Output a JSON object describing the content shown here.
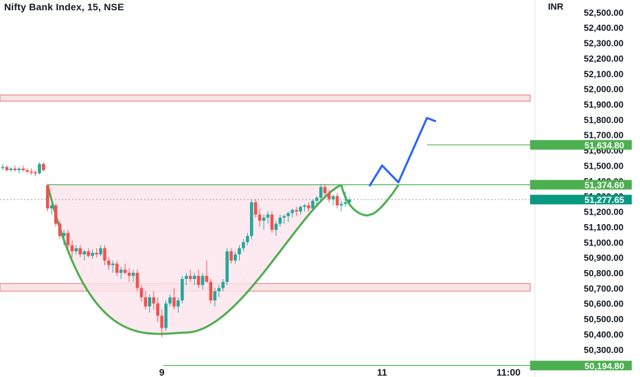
{
  "header": {
    "title": "Nifty Bank Index, 15, NSE",
    "currency": "INR"
  },
  "colors": {
    "up": "#26a69a",
    "down": "#ef5350",
    "pattern_stroke": "#4caf50",
    "pattern_fill": "#fce4ec",
    "projection": "#2962ff",
    "zone_fill": "#f8d7da",
    "zone_stroke": "#e57373",
    "level_label_bg": "#4caf50",
    "current_label_bg": "#089981"
  },
  "chart_data": {
    "type": "candlestick",
    "title": "Nifty Bank Index, 15, NSE",
    "y_axis": {
      "unit": "INR",
      "ticks": [
        "52,500.00",
        "52,400.00",
        "52,300.00",
        "52,200.00",
        "52,100.00",
        "52,000.00",
        "51,900.00",
        "51,800.00",
        "51,700.00",
        "51,600.00",
        "51,500.00",
        "51,400.00",
        "51,300.00",
        "51,200.00",
        "51,100.00",
        "51,000.00",
        "50,900.00",
        "50,800.00",
        "50,700.00",
        "50,600.00",
        "50,500.00",
        "50,400.00",
        "50,300.00",
        "50,200.00"
      ],
      "range": [
        50120,
        52580
      ],
      "side": "right"
    },
    "x_axis": {
      "ticks": [
        {
          "label": "9",
          "bar": 39
        },
        {
          "label": "11",
          "bar": 93
        },
        {
          "label": "11:00",
          "bar": 124
        }
      ]
    },
    "candles": [
      [
        51490,
        51510,
        51470,
        51490
      ],
      [
        51490,
        51500,
        51460,
        51470
      ],
      [
        51470,
        51490,
        51460,
        51480
      ],
      [
        51480,
        51500,
        51460,
        51470
      ],
      [
        51470,
        51490,
        51450,
        51480
      ],
      [
        51480,
        51500,
        51460,
        51470
      ],
      [
        51470,
        51480,
        51450,
        51460
      ],
      [
        51460,
        51480,
        51440,
        51455
      ],
      [
        51455,
        51470,
        51430,
        51450
      ],
      [
        51450,
        51520,
        51440,
        51510
      ],
      [
        51510,
        51520,
        51460,
        51470
      ],
      [
        51370,
        51380,
        51200,
        51220
      ],
      [
        51220,
        51260,
        51180,
        51240
      ],
      [
        51240,
        51250,
        51100,
        51120
      ],
      [
        51120,
        51140,
        51020,
        51040
      ],
      [
        51040,
        51080,
        50980,
        51060
      ],
      [
        51060,
        51080,
        50960,
        50980
      ],
      [
        50980,
        51010,
        50900,
        50940
      ],
      [
        50940,
        50980,
        50920,
        50960
      ],
      [
        50960,
        50980,
        50900,
        50920
      ],
      [
        50920,
        50950,
        50880,
        50940
      ],
      [
        50940,
        50960,
        50900,
        50910
      ],
      [
        50910,
        50950,
        50890,
        50930
      ],
      [
        50930,
        50960,
        50900,
        50920
      ],
      [
        50920,
        50980,
        50910,
        50960
      ],
      [
        50960,
        50980,
        50850,
        50880
      ],
      [
        50880,
        50900,
        50820,
        50850
      ],
      [
        50850,
        50880,
        50800,
        50860
      ],
      [
        50860,
        50880,
        50780,
        50800
      ],
      [
        50800,
        50840,
        50760,
        50820
      ],
      [
        50820,
        50860,
        50790,
        50800
      ],
      [
        50800,
        50830,
        50740,
        50780
      ],
      [
        50780,
        50820,
        50740,
        50800
      ],
      [
        50800,
        50820,
        50680,
        50700
      ],
      [
        50700,
        50720,
        50610,
        50640
      ],
      [
        50640,
        50680,
        50560,
        50580
      ],
      [
        50580,
        50660,
        50540,
        50640
      ],
      [
        50640,
        50680,
        50560,
        50600
      ],
      [
        50600,
        50640,
        50480,
        50520
      ],
      [
        50520,
        50560,
        50380,
        50440
      ],
      [
        50440,
        50620,
        50420,
        50600
      ],
      [
        50600,
        50660,
        50580,
        50640
      ],
      [
        50640,
        50700,
        50560,
        50580
      ],
      [
        50580,
        50640,
        50540,
        50620
      ],
      [
        50620,
        50780,
        50600,
        50760
      ],
      [
        50760,
        50800,
        50720,
        50780
      ],
      [
        50780,
        50820,
        50740,
        50760
      ],
      [
        50760,
        50800,
        50720,
        50780
      ],
      [
        50780,
        50820,
        50700,
        50720
      ],
      [
        50720,
        50800,
        50690,
        50780
      ],
      [
        50780,
        50880,
        50740,
        50740
      ],
      [
        50740,
        50760,
        50600,
        50620
      ],
      [
        50620,
        50700,
        50580,
        50680
      ],
      [
        50680,
        50720,
        50640,
        50700
      ],
      [
        50700,
        50760,
        50680,
        50740
      ],
      [
        50740,
        50960,
        50720,
        50940
      ],
      [
        50940,
        50960,
        50860,
        50880
      ],
      [
        50880,
        50940,
        50860,
        50920
      ],
      [
        50920,
        50980,
        50880,
        50960
      ],
      [
        50960,
        51020,
        50940,
        51000
      ],
      [
        51000,
        51060,
        50980,
        51040
      ],
      [
        51040,
        51280,
        51020,
        51260
      ],
      [
        51260,
        51280,
        51160,
        51180
      ],
      [
        51180,
        51220,
        51100,
        51140
      ],
      [
        51140,
        51180,
        51080,
        51160
      ],
      [
        51160,
        51200,
        51120,
        51180
      ],
      [
        51180,
        51200,
        51060,
        51080
      ],
      [
        51080,
        51140,
        51040,
        51120
      ],
      [
        51120,
        51180,
        51100,
        51160
      ],
      [
        51160,
        51180,
        51120,
        51170
      ],
      [
        51170,
        51200,
        51130,
        51190
      ],
      [
        51190,
        51220,
        51160,
        51210
      ],
      [
        51210,
        51230,
        51170,
        51200
      ],
      [
        51200,
        51240,
        51180,
        51230
      ],
      [
        51230,
        51250,
        51200,
        51240
      ],
      [
        51240,
        51260,
        51200,
        51220
      ],
      [
        51220,
        51280,
        51200,
        51270
      ],
      [
        51270,
        51300,
        51240,
        51290
      ],
      [
        51290,
        51380,
        51270,
        51360
      ],
      [
        51360,
        51380,
        51300,
        51320
      ],
      [
        51320,
        51340,
        51260,
        51280
      ],
      [
        51280,
        51310,
        51240,
        51300
      ],
      [
        51300,
        51320,
        51220,
        51240
      ],
      [
        51240,
        51270,
        51200,
        51250
      ],
      [
        51250,
        51330,
        51230,
        51260
      ],
      [
        51260,
        51290,
        51250,
        51277
      ]
    ],
    "annotations": {
      "support_zone": [
        50680,
        50730
      ],
      "resistance_zone": [
        51920,
        51960
      ],
      "neckline": 51374.6,
      "target_level": 51634.8,
      "stop_level": 50194.8,
      "current_price": 51277.65,
      "projection_path": [
        [
          90,
          51370
        ],
        [
          93,
          51500
        ],
        [
          97,
          51390
        ],
        [
          104,
          51810
        ],
        [
          106,
          51790
        ]
      ]
    },
    "price_labels": [
      "51,634.80",
      "51,374.60",
      "51,277.65",
      "50,194.80"
    ],
    "grid": false,
    "legend": "none"
  }
}
